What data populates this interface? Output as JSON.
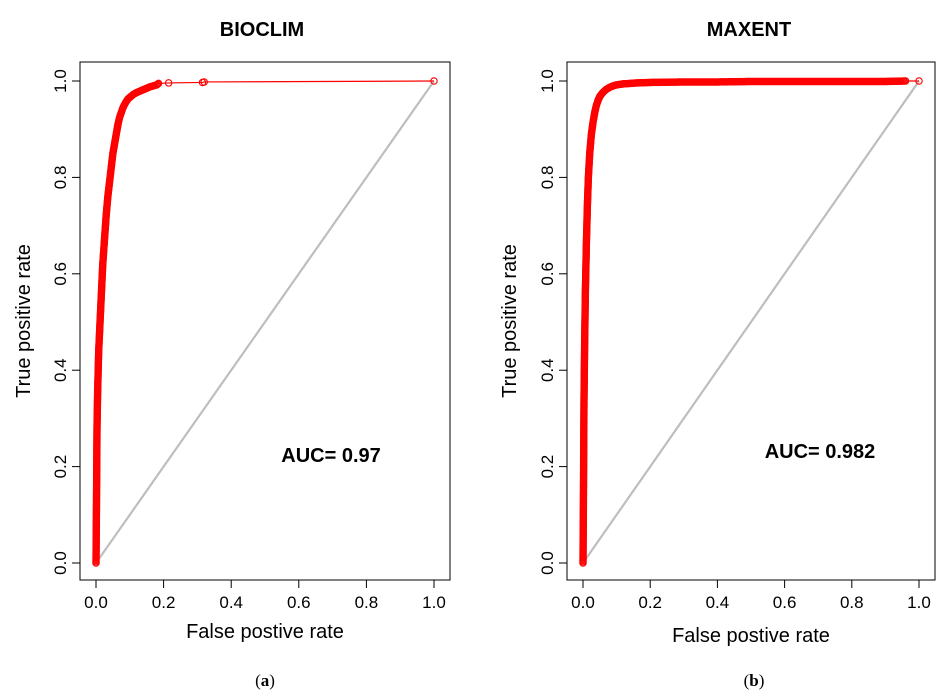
{
  "chart_data": [
    {
      "type": "line",
      "title": "BIOCLIM",
      "xlabel": "False postive rate",
      "ylabel": "True positive rate",
      "xlim": [
        0,
        1
      ],
      "ylim": [
        0,
        1
      ],
      "xticks": [
        "0.0",
        "0.2",
        "0.4",
        "0.6",
        "0.8",
        "1.0"
      ],
      "yticks": [
        "0.0",
        "0.2",
        "0.4",
        "0.6",
        "0.8",
        "1.0"
      ],
      "annotation": "AUC= 0.97",
      "caption": "a",
      "reference_line": {
        "x": [
          0,
          1
        ],
        "y": [
          0,
          1
        ],
        "color": "#bebebe"
      },
      "series": [
        {
          "color": "#ff0000",
          "x": [
            0.0,
            0.001,
            0.002,
            0.003,
            0.005,
            0.008,
            0.012,
            0.016,
            0.02,
            0.025,
            0.03,
            0.035,
            0.04,
            0.045,
            0.05,
            0.055,
            0.06,
            0.065,
            0.07,
            0.075,
            0.08,
            0.085,
            0.09,
            0.095,
            0.1,
            0.105,
            0.11,
            0.12,
            0.13,
            0.14,
            0.15,
            0.16,
            0.17,
            0.18,
            0.185,
            0.215,
            0.315,
            0.32,
            1.0
          ],
          "y": [
            0.0,
            0.08,
            0.18,
            0.28,
            0.36,
            0.44,
            0.5,
            0.56,
            0.62,
            0.67,
            0.72,
            0.76,
            0.79,
            0.82,
            0.85,
            0.87,
            0.89,
            0.91,
            0.925,
            0.935,
            0.945,
            0.952,
            0.958,
            0.963,
            0.966,
            0.969,
            0.972,
            0.976,
            0.979,
            0.982,
            0.985,
            0.988,
            0.99,
            0.992,
            0.995,
            0.996,
            0.997,
            0.998,
            1.0
          ]
        }
      ]
    },
    {
      "type": "line",
      "title": "MAXENT",
      "xlabel": "False postive rate",
      "ylabel": "True positive rate",
      "xlim": [
        0,
        1
      ],
      "ylim": [
        0,
        1
      ],
      "xticks": [
        "0.0",
        "0.2",
        "0.4",
        "0.6",
        "0.8",
        "1.0"
      ],
      "yticks": [
        "0.0",
        "0.2",
        "0.4",
        "0.6",
        "0.8",
        "1.0"
      ],
      "annotation": "AUC= 0.982",
      "caption": "b",
      "reference_line": {
        "x": [
          0,
          1
        ],
        "y": [
          0,
          1
        ],
        "color": "#bebebe"
      },
      "series": [
        {
          "color": "#ff0000",
          "x": [
            0.0,
            0.001,
            0.002,
            0.003,
            0.005,
            0.007,
            0.01,
            0.013,
            0.016,
            0.02,
            0.025,
            0.03,
            0.035,
            0.04,
            0.045,
            0.05,
            0.06,
            0.07,
            0.08,
            0.09,
            0.1,
            0.12,
            0.14,
            0.16,
            0.2,
            0.3,
            0.4,
            0.5,
            0.6,
            0.7,
            0.8,
            0.9,
            0.96,
            1.0
          ],
          "y": [
            0.0,
            0.1,
            0.22,
            0.34,
            0.46,
            0.56,
            0.66,
            0.74,
            0.8,
            0.85,
            0.89,
            0.915,
            0.935,
            0.95,
            0.96,
            0.968,
            0.977,
            0.983,
            0.987,
            0.99,
            0.992,
            0.994,
            0.995,
            0.996,
            0.997,
            0.998,
            0.998,
            0.999,
            0.999,
            0.999,
            0.999,
            0.999,
            1.0,
            1.0
          ]
        }
      ]
    }
  ]
}
